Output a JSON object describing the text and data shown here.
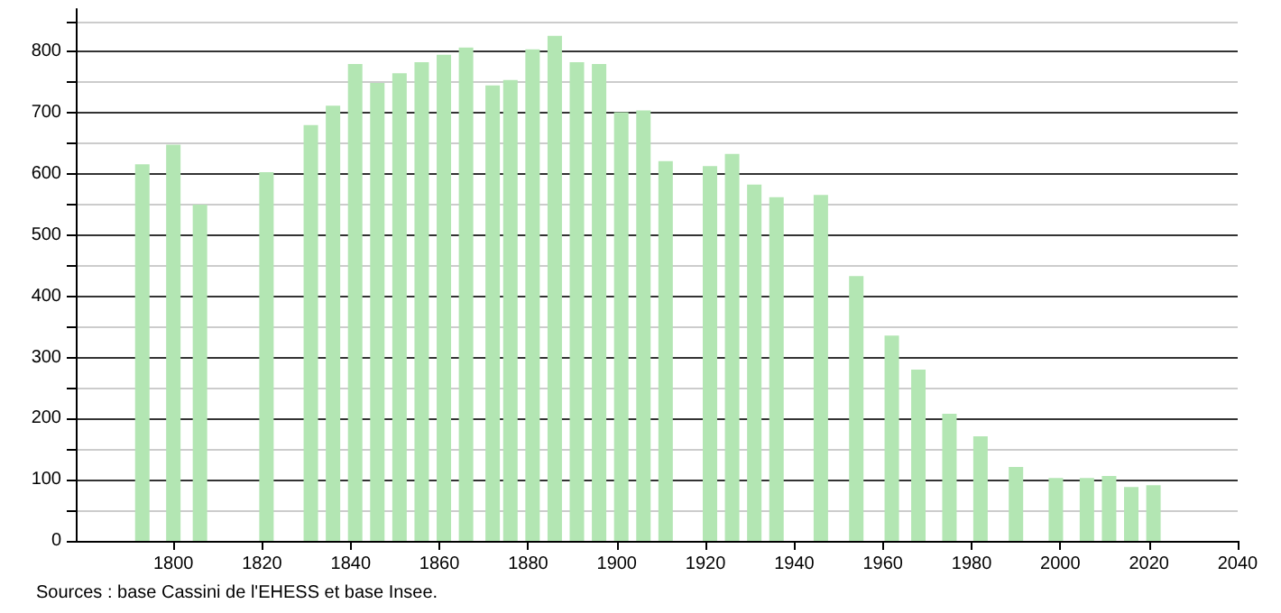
{
  "chart_data": {
    "type": "bar",
    "color": "#b3e6b3",
    "x": [
      1793,
      1800,
      1806,
      1821,
      1831,
      1836,
      1841,
      1846,
      1851,
      1856,
      1861,
      1866,
      1872,
      1876,
      1881,
      1886,
      1891,
      1896,
      1901,
      1906,
      1911,
      1921,
      1926,
      1931,
      1936,
      1946,
      1954,
      1962,
      1968,
      1975,
      1982,
      1990,
      1999,
      2006,
      2011,
      2016,
      2021
    ],
    "values": [
      616,
      648,
      550,
      603,
      680,
      712,
      780,
      749,
      765,
      783,
      795,
      807,
      745,
      754,
      804,
      826,
      783,
      780,
      701,
      704,
      621,
      613,
      633,
      583,
      562,
      566,
      433,
      336,
      280,
      208,
      171,
      121,
      103,
      103,
      106,
      88,
      91
    ],
    "xlim": [
      1778,
      2040
    ],
    "xticks": [
      1800,
      1820,
      1840,
      1860,
      1880,
      1900,
      1920,
      1940,
      1960,
      1980,
      2000,
      2020,
      2040
    ],
    "ylim": [
      0,
      870
    ],
    "yticks": [
      0,
      {
        "value": 50,
        "label": null
      },
      100,
      {
        "value": 150,
        "label": null
      },
      200,
      {
        "value": 250,
        "label": null
      },
      300,
      {
        "value": 350,
        "label": null
      },
      400,
      {
        "value": 450,
        "label": null
      },
      500,
      {
        "value": 550,
        "label": null
      },
      600,
      {
        "value": 650,
        "label": null
      },
      700,
      {
        "value": 750,
        "label": null
      },
      800,
      {
        "value": 850,
        "label": null
      }
    ],
    "grid": "y",
    "annotations": [
      "Sources : base Cassini de l'EHESS et base Insee."
    ]
  }
}
